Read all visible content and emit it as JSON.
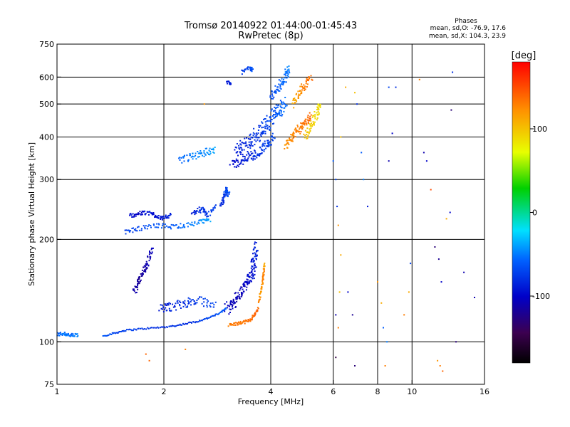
{
  "chart_data": {
    "type": "scatter",
    "title": "Tromsø 20140922 01:44:00-01:45:43",
    "subtitle": "RwPretec (8p)",
    "xlabel": "Frequency [MHz]",
    "ylabel": "Stationary phase Virtual Height [km]",
    "x_scale": "log",
    "y_scale": "log",
    "xlim": [
      1,
      16
    ],
    "ylim": [
      75,
      750
    ],
    "x_ticks": [
      1,
      2,
      4,
      6,
      8,
      10,
      16
    ],
    "x_tick_labels": [
      "1",
      "2",
      "4",
      "6",
      "8",
      "10",
      "16"
    ],
    "x_gridlines": [
      2,
      4,
      6,
      8,
      10
    ],
    "y_ticks": [
      75,
      100,
      200,
      300,
      400,
      500,
      600,
      750
    ],
    "y_tick_labels": [
      "75",
      "100",
      "200",
      "300",
      "400",
      "500",
      "600",
      "750"
    ],
    "y_gridlines": [
      100,
      200,
      300,
      400,
      500,
      600
    ],
    "grid": true,
    "stats": {
      "heading": "Phases",
      "line1": "mean, sd,O: -76.9, 17.6",
      "line2": "mean, sd,X: 104.3, 23.9"
    },
    "colorbar": {
      "label": "[deg]",
      "min": -180,
      "max": 180,
      "ticks": [
        100,
        0,
        -100
      ],
      "tick_labels": [
        "100",
        "0",
        "-100"
      ],
      "colormap": "rainbow"
    },
    "traces": [
      {
        "x": [
          1.0,
          1.05,
          1.1,
          1.15
        ],
        "y": [
          105,
          106,
          104,
          105
        ],
        "phase": [
          -60,
          -50,
          -55,
          -45
        ],
        "spread": 3
      },
      {
        "x": [
          1.35,
          1.45,
          1.55,
          1.7,
          1.9,
          2.1,
          2.3,
          2.5,
          2.7,
          2.9,
          3.0
        ],
        "y": [
          104,
          106,
          108,
          109,
          110,
          111,
          113,
          115,
          118,
          122,
          126
        ],
        "phase": [
          -65,
          -70,
          -75,
          -75,
          -80,
          -80,
          -80,
          -75,
          -70,
          -60,
          -55
        ],
        "spread": 1
      },
      {
        "x": [
          3.05,
          3.2,
          3.35,
          3.5,
          3.6,
          3.7
        ],
        "y": [
          112,
          113,
          114,
          116,
          120,
          126
        ],
        "phase": [
          130,
          135,
          130,
          135,
          140,
          140
        ],
        "spread": 2
      },
      {
        "x": [
          3.7,
          3.75,
          3.8,
          3.82,
          3.85
        ],
        "y": [
          130,
          140,
          150,
          160,
          170
        ],
        "phase": [
          130,
          120,
          125,
          130,
          110
        ],
        "spread": 2
      },
      {
        "x": [
          3.0,
          3.15,
          3.3,
          3.45,
          3.55,
          3.6,
          3.65
        ],
        "y": [
          125,
          130,
          140,
          150,
          160,
          175,
          190
        ],
        "phase": [
          -100,
          -110,
          -105,
          -100,
          -95,
          -90,
          -85
        ],
        "spread": 8
      },
      {
        "x": [
          1.65,
          1.7,
          1.75,
          1.8,
          1.85
        ],
        "y": [
          140,
          150,
          160,
          170,
          190
        ],
        "phase": [
          -110,
          -120,
          -115,
          -110,
          -105
        ],
        "spread": 5
      },
      {
        "x": [
          1.95,
          2.1,
          2.3,
          2.5,
          2.8
        ],
        "y": [
          125,
          127,
          130,
          132,
          128
        ],
        "phase": [
          -90,
          -85,
          -80,
          -75,
          -70
        ],
        "spread": 6
      },
      {
        "x": [
          1.6,
          1.7,
          1.8,
          1.9,
          2.0,
          2.1
        ],
        "y": [
          235,
          238,
          240,
          235,
          230,
          238
        ],
        "phase": [
          -95,
          -100,
          -90,
          -95,
          -90,
          -85
        ],
        "spread": 3
      },
      {
        "x": [
          1.55,
          1.7,
          1.9,
          2.1,
          2.3,
          2.55,
          2.7
        ],
        "y": [
          210,
          215,
          220,
          218,
          220,
          225,
          228
        ],
        "phase": [
          -75,
          -70,
          -65,
          -60,
          -55,
          -45,
          -40
        ],
        "spread": 3
      },
      {
        "x": [
          2.4,
          2.55,
          2.65,
          2.8
        ],
        "y": [
          240,
          245,
          235,
          250
        ],
        "phase": [
          -90,
          -80,
          -75,
          -70
        ],
        "spread": 4
      },
      {
        "x": [
          2.9,
          2.95,
          3.0,
          3.05
        ],
        "y": [
          250,
          265,
          280,
          270
        ],
        "phase": [
          -85,
          -80,
          -70,
          -65
        ],
        "spread": 4
      },
      {
        "x": [
          2.2,
          2.4,
          2.6,
          2.8
        ],
        "y": [
          340,
          350,
          360,
          370
        ],
        "phase": [
          -55,
          -50,
          -45,
          -40
        ],
        "spread": 5
      },
      {
        "x": [
          3.1,
          3.3,
          3.5,
          3.7,
          3.9,
          4.1
        ],
        "y": [
          330,
          340,
          350,
          360,
          380,
          400
        ],
        "phase": [
          -100,
          -90,
          -85,
          -80,
          -75,
          -70
        ],
        "spread": 6
      },
      {
        "x": [
          3.2,
          3.4,
          3.6,
          3.8,
          4.0,
          4.2,
          4.4
        ],
        "y": [
          360,
          380,
          400,
          420,
          450,
          480,
          510
        ],
        "phase": [
          -90,
          -85,
          -80,
          -75,
          -70,
          -60,
          -55
        ],
        "spread": 10
      },
      {
        "x": [
          4.0,
          4.2,
          4.4,
          4.5
        ],
        "y": [
          520,
          560,
          600,
          640
        ],
        "phase": [
          -70,
          -60,
          -55,
          -50
        ],
        "spread": 6
      },
      {
        "x": [
          3.3,
          3.5,
          3.55
        ],
        "y": [
          620,
          640,
          630
        ],
        "phase": [
          -75,
          -70,
          -65
        ],
        "spread": 3
      },
      {
        "x": [
          3.0,
          3.1
        ],
        "y": [
          580,
          575
        ],
        "phase": [
          -90,
          -85
        ],
        "spread": 2
      },
      {
        "x": [
          4.4,
          4.6,
          4.8,
          5.0,
          5.2
        ],
        "y": [
          380,
          400,
          420,
          440,
          460
        ],
        "phase": [
          120,
          125,
          130,
          135,
          140
        ],
        "spread": 6
      },
      {
        "x": [
          5.0,
          5.2,
          5.4,
          5.5
        ],
        "y": [
          400,
          430,
          470,
          500
        ],
        "phase": [
          100,
          95,
          90,
          85
        ],
        "spread": 6
      },
      {
        "x": [
          4.6,
          4.8,
          5.0,
          5.2
        ],
        "y": [
          500,
          540,
          570,
          600
        ],
        "phase": [
          110,
          120,
          130,
          135
        ],
        "spread": 5
      }
    ],
    "scatter_points": [
      {
        "x": 1.78,
        "y": 92,
        "phase": 140
      },
      {
        "x": 1.82,
        "y": 88,
        "phase": 140
      },
      {
        "x": 2.6,
        "y": 500,
        "phase": 120
      },
      {
        "x": 2.3,
        "y": 95,
        "phase": 130
      },
      {
        "x": 6.0,
        "y": 340,
        "phase": -60
      },
      {
        "x": 6.1,
        "y": 300,
        "phase": -70
      },
      {
        "x": 6.15,
        "y": 250,
        "phase": -80
      },
      {
        "x": 6.2,
        "y": 220,
        "phase": 120
      },
      {
        "x": 6.3,
        "y": 180,
        "phase": 110
      },
      {
        "x": 6.25,
        "y": 140,
        "phase": 100
      },
      {
        "x": 6.1,
        "y": 120,
        "phase": -110
      },
      {
        "x": 6.2,
        "y": 110,
        "phase": 130
      },
      {
        "x": 6.1,
        "y": 90,
        "phase": -150
      },
      {
        "x": 6.3,
        "y": 400,
        "phase": 100
      },
      {
        "x": 6.6,
        "y": 140,
        "phase": -100
      },
      {
        "x": 6.8,
        "y": 120,
        "phase": -120
      },
      {
        "x": 6.9,
        "y": 85,
        "phase": -130
      },
      {
        "x": 6.5,
        "y": 560,
        "phase": 110
      },
      {
        "x": 6.9,
        "y": 540,
        "phase": 100
      },
      {
        "x": 7.0,
        "y": 500,
        "phase": -80
      },
      {
        "x": 7.2,
        "y": 360,
        "phase": -60
      },
      {
        "x": 7.3,
        "y": 300,
        "phase": -50
      },
      {
        "x": 7.5,
        "y": 250,
        "phase": -90
      },
      {
        "x": 8.0,
        "y": 150,
        "phase": 120
      },
      {
        "x": 8.2,
        "y": 130,
        "phase": 110
      },
      {
        "x": 8.3,
        "y": 110,
        "phase": -60
      },
      {
        "x": 8.5,
        "y": 100,
        "phase": -50
      },
      {
        "x": 8.4,
        "y": 85,
        "phase": 130
      },
      {
        "x": 8.6,
        "y": 560,
        "phase": -70
      },
      {
        "x": 9.0,
        "y": 560,
        "phase": -80
      },
      {
        "x": 8.8,
        "y": 410,
        "phase": -100
      },
      {
        "x": 8.6,
        "y": 340,
        "phase": -110
      },
      {
        "x": 9.5,
        "y": 120,
        "phase": 130
      },
      {
        "x": 9.8,
        "y": 140,
        "phase": 110
      },
      {
        "x": 9.9,
        "y": 170,
        "phase": -70
      },
      {
        "x": 10.5,
        "y": 590,
        "phase": 130
      },
      {
        "x": 10.8,
        "y": 360,
        "phase": -110
      },
      {
        "x": 11.0,
        "y": 340,
        "phase": -100
      },
      {
        "x": 11.3,
        "y": 280,
        "phase": 150
      },
      {
        "x": 11.6,
        "y": 190,
        "phase": -130
      },
      {
        "x": 11.9,
        "y": 175,
        "phase": -120
      },
      {
        "x": 12.1,
        "y": 150,
        "phase": -100
      },
      {
        "x": 11.8,
        "y": 88,
        "phase": 120
      },
      {
        "x": 12.0,
        "y": 85,
        "phase": 130
      },
      {
        "x": 12.2,
        "y": 82,
        "phase": 140
      },
      {
        "x": 12.5,
        "y": 230,
        "phase": 110
      },
      {
        "x": 13.0,
        "y": 620,
        "phase": -80
      },
      {
        "x": 12.9,
        "y": 480,
        "phase": -130
      },
      {
        "x": 12.8,
        "y": 240,
        "phase": -100
      },
      {
        "x": 14.0,
        "y": 160,
        "phase": -110
      },
      {
        "x": 13.3,
        "y": 100,
        "phase": -130
      },
      {
        "x": 15.0,
        "y": 135,
        "phase": -110
      }
    ]
  }
}
